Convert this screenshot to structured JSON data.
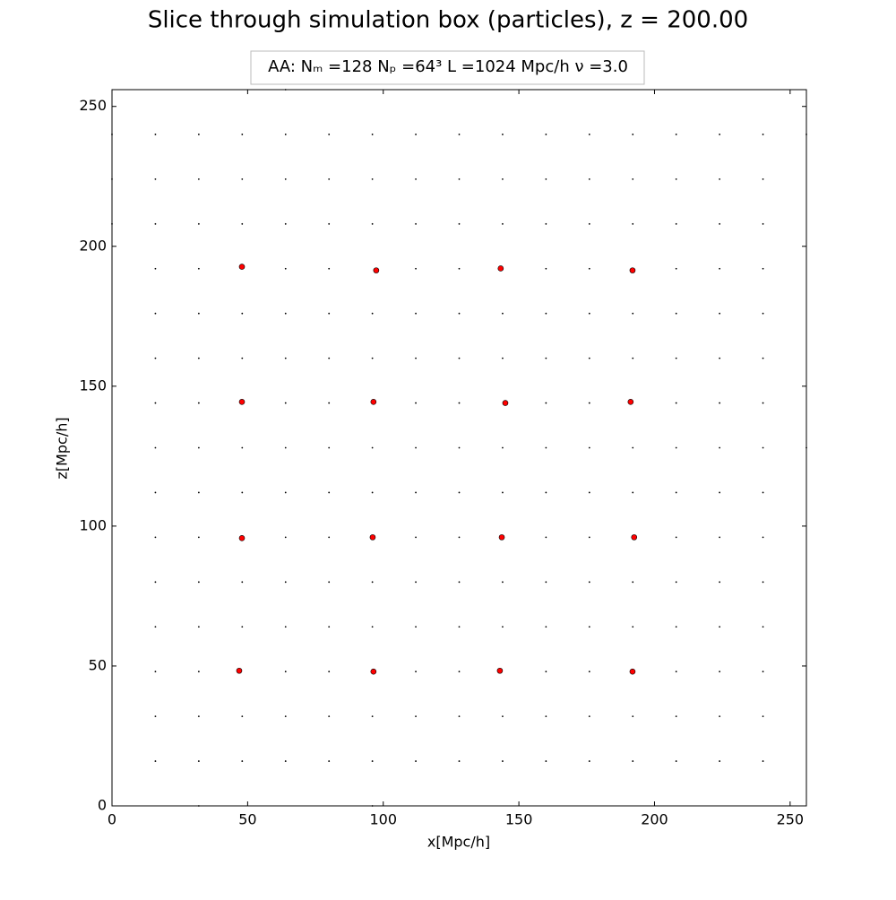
{
  "chart_data": {
    "type": "scatter",
    "title": "Slice through simulation box (particles), z = 200.00",
    "annotation": "AA:  Nₘ =128  Nₚ =64³  L =1024 Mpc/h  ν =3.0",
    "x_label": "x[Mpc/h]",
    "y_label": "z[Mpc/h]",
    "xlim": [
      0,
      256
    ],
    "ylim": [
      0,
      256
    ],
    "xticks": [
      0,
      50,
      100,
      150,
      200,
      250
    ],
    "yticks": [
      0,
      50,
      100,
      150,
      200,
      250
    ],
    "series": [
      {
        "color": "#000000",
        "x": [
          16,
          32,
          48,
          64,
          80,
          96,
          112,
          128,
          144,
          160,
          176,
          192,
          208,
          224,
          240,
          16,
          32,
          48,
          64,
          80,
          96,
          112,
          128,
          144,
          160,
          176,
          192,
          208,
          224,
          240,
          16,
          32,
          64,
          80,
          112,
          128,
          160,
          176,
          208,
          224,
          240,
          16,
          32,
          48,
          64,
          80,
          96,
          112,
          128,
          144,
          160,
          176,
          192,
          208,
          224,
          240,
          16,
          32,
          48,
          64,
          80,
          96,
          112,
          128,
          144,
          160,
          176,
          192,
          208,
          224,
          240,
          16,
          32,
          64,
          80,
          112,
          128,
          160,
          176,
          208,
          224,
          240,
          16,
          32,
          48,
          64,
          80,
          96,
          112,
          128,
          144,
          160,
          176,
          192,
          208,
          224,
          240,
          16,
          32,
          48,
          64,
          80,
          96,
          112,
          128,
          144,
          160,
          176,
          192,
          208,
          224,
          240,
          16,
          32,
          64,
          80,
          112,
          128,
          160,
          176,
          208,
          224,
          240,
          16,
          32,
          48,
          64,
          80,
          96,
          112,
          128,
          144,
          160,
          176,
          192,
          208,
          224,
          240,
          16,
          32,
          48,
          64,
          80,
          96,
          112,
          128,
          144,
          160,
          176,
          192,
          208,
          224,
          240,
          16,
          32,
          64,
          80,
          112,
          128,
          160,
          176,
          208,
          224,
          240,
          16,
          32,
          48,
          64,
          80,
          96,
          112,
          128,
          144,
          160,
          176,
          192,
          208,
          224,
          240,
          16,
          32,
          48,
          64,
          80,
          96,
          112,
          128,
          144,
          160,
          176,
          192,
          208,
          224,
          240,
          16,
          32,
          48,
          64,
          80,
          96,
          112,
          128,
          144,
          160,
          176,
          192,
          208,
          224,
          240,
          0,
          0,
          0,
          256,
          256,
          64,
          32,
          96
        ],
        "values": [
          16,
          16,
          16,
          16,
          16,
          16,
          16,
          16,
          16,
          16,
          16,
          16,
          16,
          16,
          16,
          32,
          32,
          32,
          32,
          32,
          32,
          32,
          32,
          32,
          32,
          32,
          32,
          32,
          32,
          32,
          48,
          48,
          48,
          48,
          48,
          48,
          48,
          48,
          48,
          48,
          48,
          64,
          64,
          64,
          64,
          64,
          64,
          64,
          64,
          64,
          64,
          64,
          64,
          64,
          64,
          64,
          80,
          80,
          80,
          80,
          80,
          80,
          80,
          80,
          80,
          80,
          80,
          80,
          80,
          80,
          80,
          96,
          96,
          96,
          96,
          96,
          96,
          96,
          96,
          96,
          96,
          96,
          112,
          112,
          112,
          112,
          112,
          112,
          112,
          112,
          112,
          112,
          112,
          112,
          112,
          112,
          112,
          128,
          128,
          128,
          128,
          128,
          128,
          128,
          128,
          128,
          128,
          128,
          128,
          128,
          128,
          128,
          144,
          144,
          144,
          144,
          144,
          144,
          144,
          144,
          144,
          144,
          144,
          160,
          160,
          160,
          160,
          160,
          160,
          160,
          160,
          160,
          160,
          160,
          160,
          160,
          160,
          160,
          176,
          176,
          176,
          176,
          176,
          176,
          176,
          176,
          176,
          176,
          176,
          176,
          176,
          176,
          176,
          192,
          192,
          192,
          192,
          192,
          192,
          192,
          192,
          192,
          192,
          192,
          208,
          208,
          208,
          208,
          208,
          208,
          208,
          208,
          208,
          208,
          208,
          208,
          208,
          208,
          208,
          224,
          224,
          224,
          224,
          224,
          224,
          224,
          224,
          224,
          224,
          224,
          224,
          224,
          224,
          224,
          240,
          240,
          240,
          240,
          240,
          240,
          240,
          240,
          240,
          240,
          240,
          240,
          240,
          240,
          240,
          240,
          224,
          208,
          240,
          128,
          256,
          0,
          0
        ]
      },
      {
        "color": "#ff0000",
        "x": [
          47.9,
          97.4,
          143.3,
          191.9,
          47.9,
          96.4,
          145.0,
          191.2,
          47.9,
          96.1,
          143.7,
          192.5,
          46.9,
          96.4,
          143.0,
          191.9
        ],
        "values": [
          192.7,
          191.4,
          192.1,
          191.4,
          144.4,
          144.4,
          144.0,
          144.4,
          95.7,
          96.0,
          96.0,
          96.0,
          48.3,
          48.0,
          48.3,
          48.0
        ]
      }
    ]
  }
}
